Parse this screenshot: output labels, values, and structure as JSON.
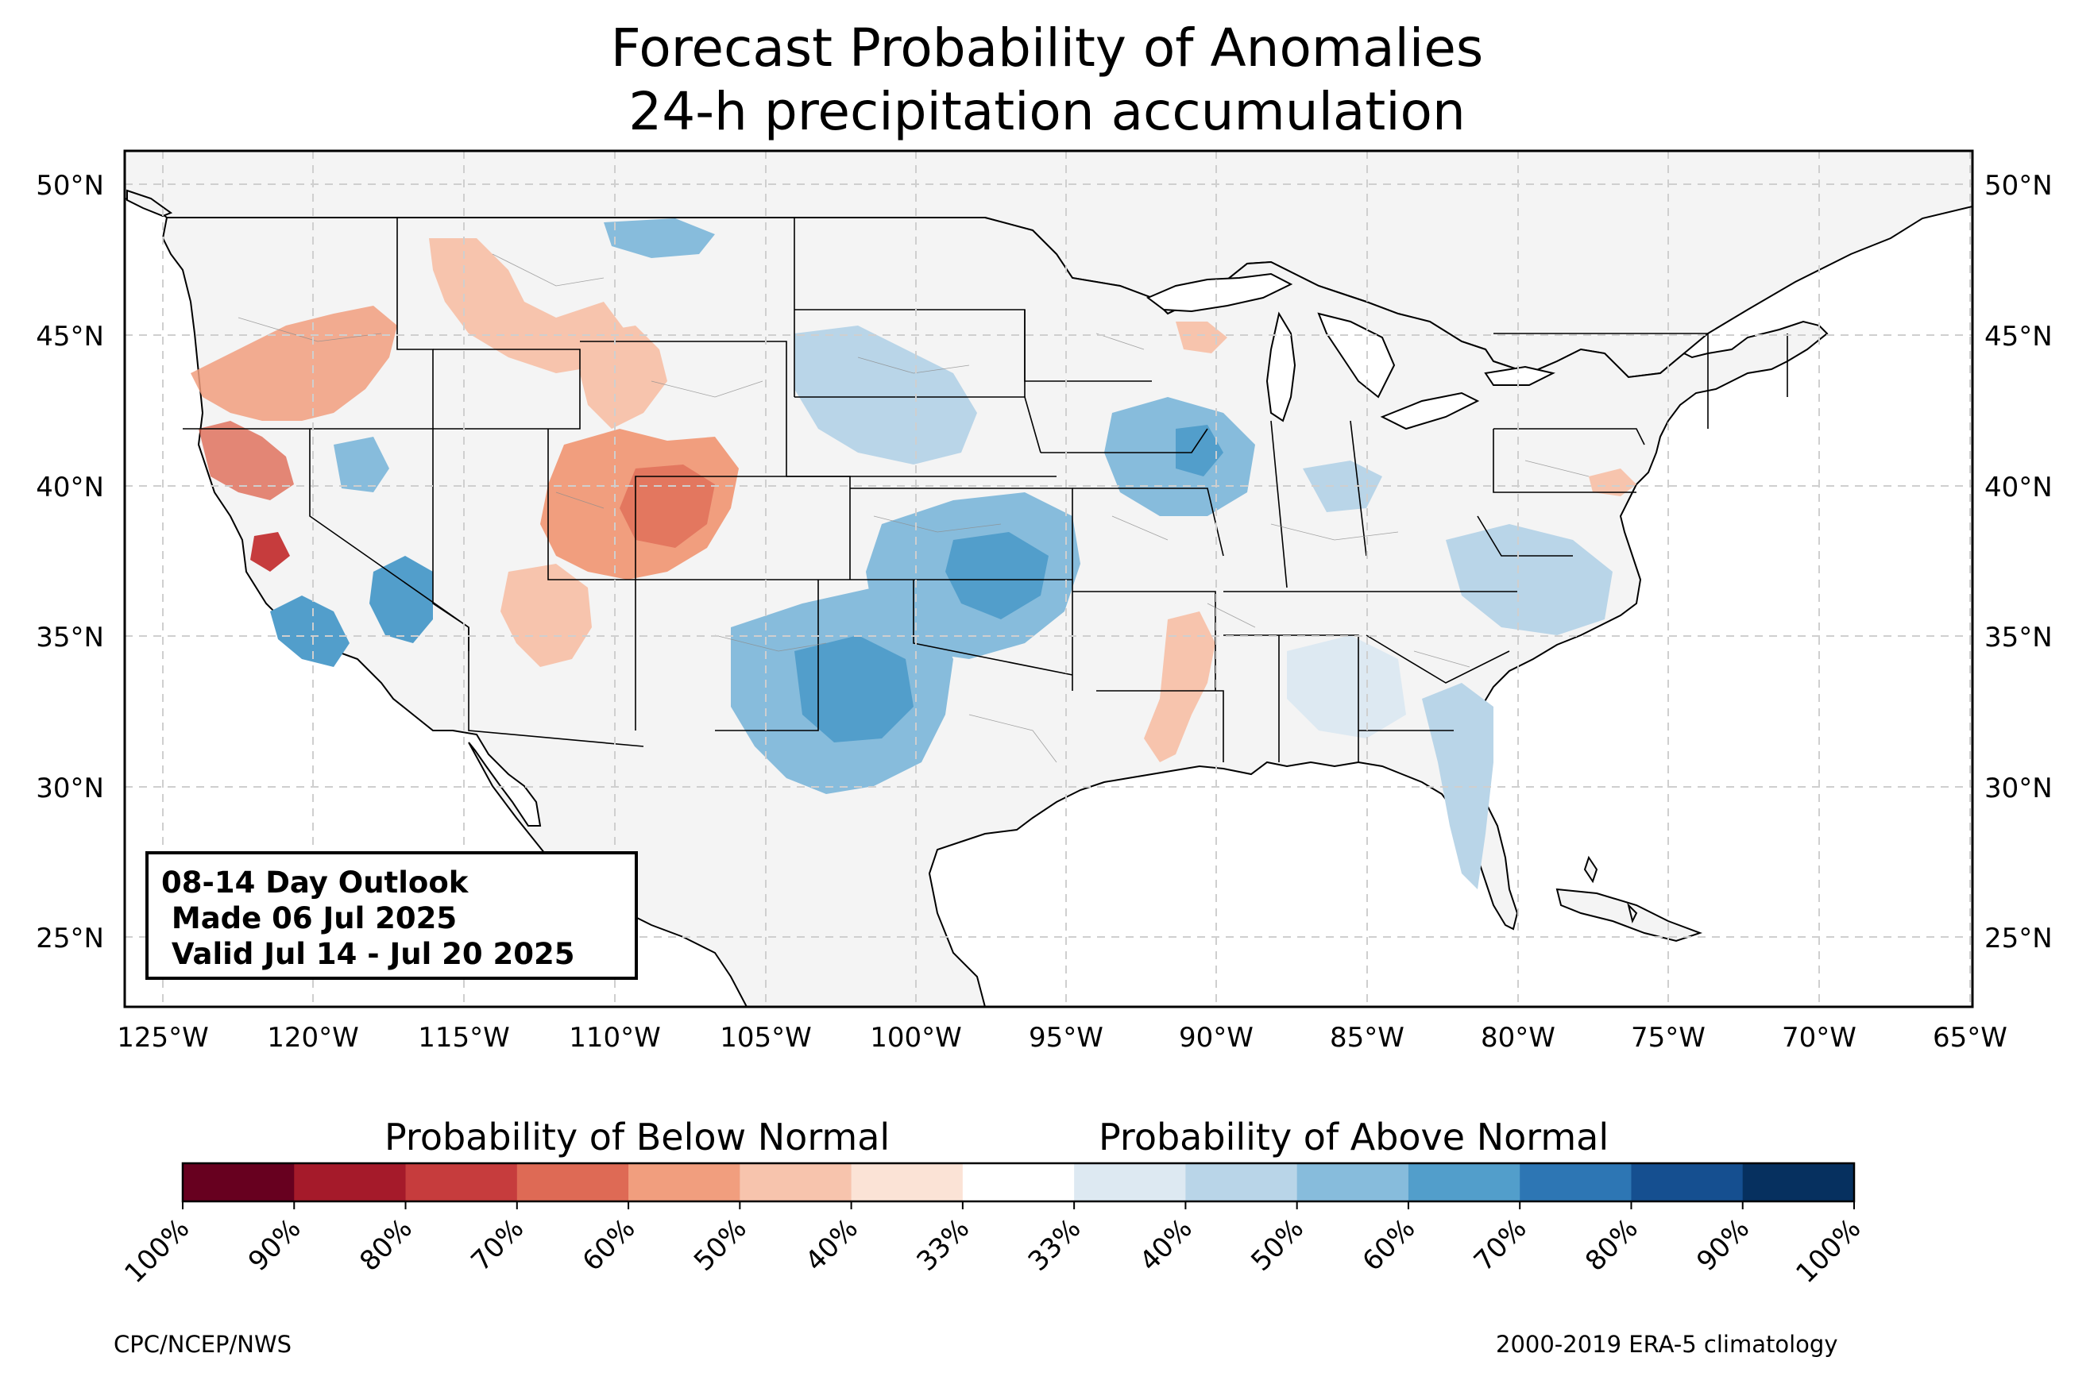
{
  "title": {
    "line1": "Forecast Probability of Anomalies",
    "line2": "24-h precipitation accumulation"
  },
  "outlook_box": {
    "line1": "08-14 Day Outlook",
    "line2": " Made 06 Jul 2025",
    "line3": " Valid Jul 14 - Jul 20 2025"
  },
  "latitude_labels": [
    "50°N",
    "45°N",
    "40°N",
    "35°N",
    "30°N",
    "25°N"
  ],
  "longitude_labels": [
    "125°W",
    "120°W",
    "115°W",
    "110°W",
    "105°W",
    "100°W",
    "95°W",
    "90°W",
    "85°W",
    "80°W",
    "75°W",
    "70°W",
    "65°W"
  ],
  "colorbar": {
    "below_label": "Probability of Below Normal",
    "above_label": "Probability of Above Normal",
    "tick_labels": [
      "100%",
      "90%",
      "80%",
      "70%",
      "60%",
      "50%",
      "40%",
      "33%",
      "33%",
      "40%",
      "50%",
      "60%",
      "70%",
      "80%",
      "90%",
      "100%"
    ],
    "colors": [
      "#67001f",
      "#a51a2a",
      "#c63c3d",
      "#de6a55",
      "#f19e7e",
      "#f7c4ad",
      "#fbe3d6",
      "#ffffff",
      "#dde9f2",
      "#b9d5e8",
      "#87bcdc",
      "#529ecb",
      "#2d76b4",
      "#154f90",
      "#06305f"
    ]
  },
  "footer": {
    "left": "CPC/NCEP/NWS",
    "right": "2000-2019 ERA-5 climatology"
  },
  "map_colors": {
    "land": "#f4f4f4",
    "ocean": "#ffffff",
    "state_lines": "#000000",
    "county_lines": "#8c8c8c",
    "grid": "#cfcfcf"
  },
  "anomaly_areas": [
    {
      "region": "Oregon / NorCal",
      "category": "below",
      "level": "50-60%"
    },
    {
      "region": "Idaho / Montana",
      "category": "below",
      "level": "40-50%"
    },
    {
      "region": "Wyoming",
      "category": "below",
      "level": "40-50%"
    },
    {
      "region": "Utah / Colorado",
      "category": "below",
      "level": "50-70%"
    },
    {
      "region": "Arizona",
      "category": "below",
      "level": "40-50%"
    },
    {
      "region": "Central California",
      "category": "below",
      "level": "60-80%"
    },
    {
      "region": "Southern California",
      "category": "above",
      "level": "60-70%"
    },
    {
      "region": "Nevada",
      "category": "above",
      "level": "50-60%"
    },
    {
      "region": "Montana",
      "category": "above",
      "level": "40-50%"
    },
    {
      "region": "Nebraska / South Dakota",
      "category": "above",
      "level": "40-60%"
    },
    {
      "region": "Kansas / Oklahoma",
      "category": "above",
      "level": "50-70%"
    },
    {
      "region": "New Mexico / West Texas",
      "category": "above",
      "level": "50-70%"
    },
    {
      "region": "Illinois / Iowa",
      "category": "above",
      "level": "40-60%"
    },
    {
      "region": "Virginia / North Carolina",
      "category": "above",
      "level": "40-50%"
    },
    {
      "region": "Florida",
      "category": "above",
      "level": "40-50%"
    },
    {
      "region": "Mississippi / Louisiana",
      "category": "below",
      "level": "40-50%"
    }
  ]
}
